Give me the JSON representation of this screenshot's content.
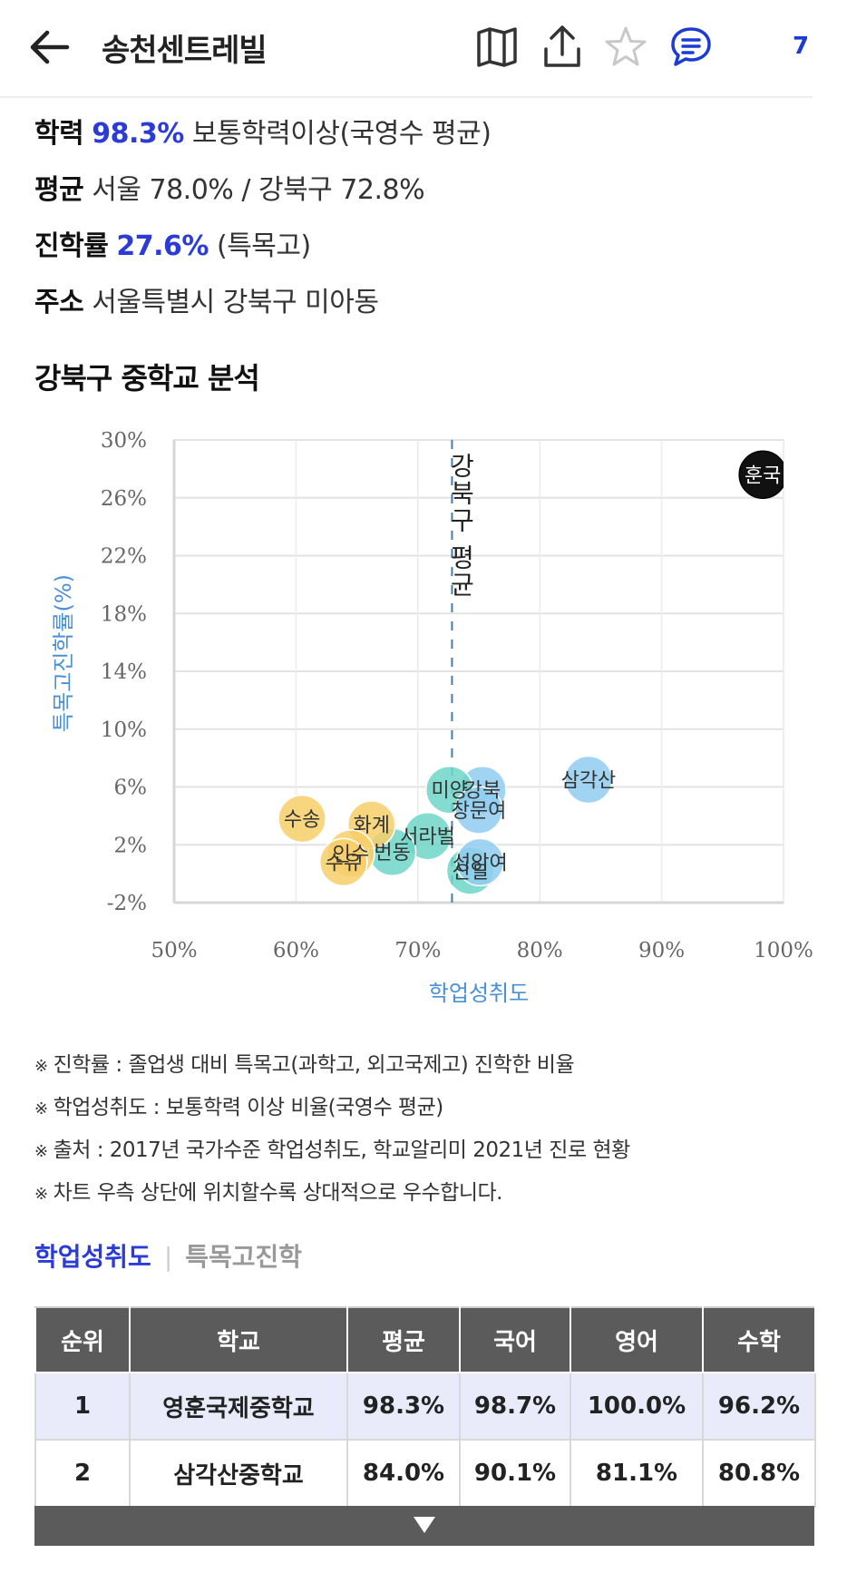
{
  "header": {
    "title": "송천센트레빌",
    "comment_count": "7"
  },
  "info": {
    "academic": {
      "label": "학력",
      "value": "98.3%",
      "desc": "보통학력이상(국영수 평균)"
    },
    "average": {
      "label": "평균",
      "value": "서울 78.0% / 강북구 72.8%"
    },
    "advancement": {
      "label": "진학률",
      "value": "27.6%",
      "desc": "(특목고)"
    },
    "address": {
      "label": "주소",
      "value": "서울특별시 강북구 미아동"
    }
  },
  "section_title": "강북구 중학교 분석",
  "chart_data": {
    "type": "scatter",
    "xlabel": "학업성취도",
    "ylabel": "특목고진학률(%)",
    "xlim": [
      50,
      100
    ],
    "ylim": [
      -2,
      30
    ],
    "xticks": [
      "50%",
      "60%",
      "70%",
      "80%",
      "90%",
      "100%"
    ],
    "yticks": [
      "30%",
      "26%",
      "22%",
      "18%",
      "14%",
      "10%",
      "6%",
      "2%",
      "-2%"
    ],
    "reference_line": {
      "label": "강북구 평균",
      "x": 72.8
    },
    "grid": true,
    "points": [
      {
        "name": "영훈국제",
        "label": "훈국",
        "x": 98.3,
        "y": 27.6,
        "color": "#111111"
      },
      {
        "name": "삼각산",
        "label": "삼각산",
        "x": 84.0,
        "y": 6.5,
        "color": "#8fcdf0"
      },
      {
        "name": "강북",
        "label": "강북",
        "x": 75.3,
        "y": 5.8,
        "color": "#8fcdf0"
      },
      {
        "name": "미양",
        "label": "미양",
        "x": 72.6,
        "y": 5.8,
        "color": "#6fd6c8"
      },
      {
        "name": "창문여",
        "label": "창문여",
        "x": 75.0,
        "y": 4.4,
        "color": "#8fcdf0"
      },
      {
        "name": "서라벌",
        "label": "서라벌",
        "x": 70.8,
        "y": 2.6,
        "color": "#6fd6c8"
      },
      {
        "name": "번동",
        "label": "번동",
        "x": 67.9,
        "y": 1.5,
        "color": "#6fd6c8"
      },
      {
        "name": "수송",
        "label": "수송",
        "x": 60.5,
        "y": 3.8,
        "color": "#f7cf6a"
      },
      {
        "name": "화계",
        "label": "화계",
        "x": 66.2,
        "y": 3.4,
        "color": "#f7cf6a"
      },
      {
        "name": "인수",
        "label": "인수",
        "x": 64.5,
        "y": 1.4,
        "color": "#f7cf6a"
      },
      {
        "name": "수유",
        "label": "수유",
        "x": 63.9,
        "y": 0.8,
        "color": "#f7cf6a"
      },
      {
        "name": "신일",
        "label": "신일",
        "x": 74.3,
        "y": 0.2,
        "color": "#6fd6c8"
      },
      {
        "name": "성암여",
        "label": "성암여",
        "x": 75.1,
        "y": 0.8,
        "color": "#8fcdf0"
      }
    ]
  },
  "notes": [
    "진학률 : 졸업생 대비 특목고(과학고, 외고국제고) 진학한 비율",
    "학업성취도 : 보통학력 이상 비율(국영수 평균)",
    "출처 : 2017년 국가수준 학업성취도, 학교알리미 2021년 진로 현황",
    "차트 우측 상단에 위치할수록 상대적으로 우수합니다."
  ],
  "note_mark": "※",
  "tabs": {
    "active": "학업성취도",
    "inactive": "특목고진학",
    "separator": "|"
  },
  "table": {
    "headers": [
      "순위",
      "학교",
      "평균",
      "국어",
      "영어",
      "수학"
    ],
    "rows": [
      [
        "1",
        "영훈국제중학교",
        "98.3%",
        "98.7%",
        "100.0%",
        "96.2%"
      ],
      [
        "2",
        "삼각산중학교",
        "84.0%",
        "90.1%",
        "81.1%",
        "80.8%"
      ]
    ]
  }
}
